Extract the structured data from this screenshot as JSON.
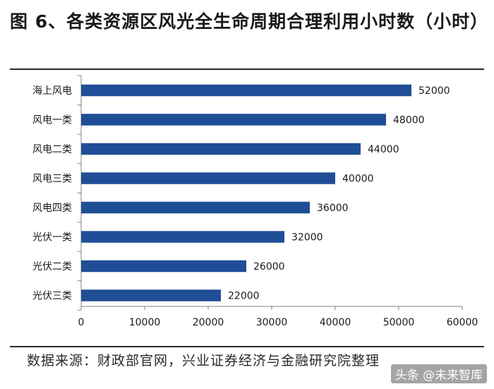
{
  "title": "图 6、各类资源区风光全生命周期合理利用小时数（小时）",
  "source": "数据来源：财政部官网，兴业证券经济与金融研究院整理",
  "watermark": "头条 @未来智库",
  "colors": {
    "bar": "#1f4e96",
    "axis": "#808080",
    "text": "#1a1a1a"
  },
  "chart_data": {
    "type": "bar",
    "orientation": "horizontal",
    "categories": [
      "海上风电",
      "风电一类",
      "风电二类",
      "风电三类",
      "风电四类",
      "光伏一类",
      "光伏二类",
      "光伏三类"
    ],
    "values": [
      52000,
      48000,
      44000,
      40000,
      36000,
      32000,
      26000,
      22000
    ],
    "xlim": [
      0,
      60000
    ],
    "xticks": [
      0,
      10000,
      20000,
      30000,
      40000,
      50000,
      60000
    ],
    "grid": false,
    "legend": "none",
    "data_labels": true
  }
}
